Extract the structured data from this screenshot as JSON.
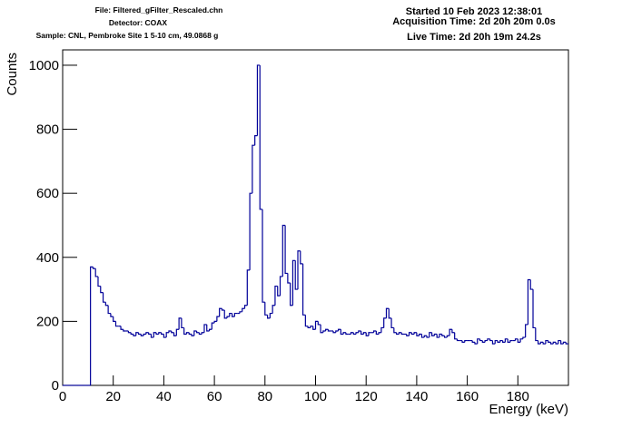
{
  "chart_data": {
    "type": "histogram",
    "annotations": [
      "File: Filtered_gFilter_Rescaled.chn",
      "Detector: COAX",
      "Sample: CNL, Pembroke Site 1 5-10 cm, 49.0868 g",
      "Started 10 Feb 2023 12:38:01",
      "Acquisition Time: 2d 20h 20m 0.0s",
      "Live Time: 2d 20h 19m 24.2s"
    ],
    "x_label": "Energy (keV)",
    "y_label": "Counts",
    "color": "#000099",
    "xlim": [
      0,
      200
    ],
    "ylim": [
      0,
      1048
    ],
    "xticks": [
      0,
      20,
      40,
      60,
      80,
      100,
      120,
      140,
      160,
      180
    ],
    "yticks": [
      0,
      200,
      400,
      600,
      800,
      1000
    ],
    "bins": [
      0,
      1,
      2,
      3,
      4,
      5,
      6,
      7,
      8,
      9,
      10,
      11,
      12,
      13,
      14,
      15,
      16,
      17,
      18,
      19,
      20,
      21,
      22,
      23,
      24,
      25,
      26,
      27,
      28,
      29,
      30,
      31,
      32,
      33,
      34,
      35,
      36,
      37,
      38,
      39,
      40,
      41,
      42,
      43,
      44,
      45,
      46,
      47,
      48,
      49,
      50,
      51,
      52,
      53,
      54,
      55,
      56,
      57,
      58,
      59,
      60,
      61,
      62,
      63,
      64,
      65,
      66,
      67,
      68,
      69,
      70,
      71,
      72,
      73,
      74,
      75,
      76,
      77,
      78,
      79,
      80,
      81,
      82,
      83,
      84,
      85,
      86,
      87,
      88,
      89,
      90,
      91,
      92,
      93,
      94,
      95,
      96,
      97,
      98,
      99,
      100,
      101,
      102,
      103,
      104,
      105,
      106,
      107,
      108,
      109,
      110,
      111,
      112,
      113,
      114,
      115,
      116,
      117,
      118,
      119,
      120,
      121,
      122,
      123,
      124,
      125,
      126,
      127,
      128,
      129,
      130,
      131,
      132,
      133,
      134,
      135,
      136,
      137,
      138,
      139,
      140,
      141,
      142,
      143,
      144,
      145,
      146,
      147,
      148,
      149,
      150,
      151,
      152,
      153,
      154,
      155,
      156,
      157,
      158,
      159,
      160,
      161,
      162,
      163,
      164,
      165,
      166,
      167,
      168,
      169,
      170,
      171,
      172,
      173,
      174,
      175,
      176,
      177,
      178,
      179,
      180,
      181,
      182,
      183,
      184,
      185,
      186,
      187,
      188,
      189,
      190,
      191,
      192,
      193,
      194,
      195,
      196,
      197,
      198,
      199,
      200
    ],
    "values": [
      0,
      0,
      0,
      0,
      0,
      0,
      0,
      0,
      0,
      0,
      0,
      370,
      365,
      340,
      310,
      290,
      260,
      250,
      225,
      215,
      200,
      185,
      185,
      175,
      170,
      170,
      165,
      160,
      155,
      165,
      160,
      155,
      160,
      165,
      160,
      150,
      165,
      160,
      165,
      160,
      150,
      165,
      170,
      165,
      155,
      175,
      210,
      180,
      160,
      165,
      160,
      155,
      170,
      165,
      160,
      165,
      190,
      170,
      175,
      195,
      200,
      215,
      240,
      235,
      210,
      215,
      225,
      215,
      225,
      225,
      230,
      240,
      250,
      360,
      600,
      750,
      780,
      1000,
      550,
      260,
      220,
      210,
      225,
      250,
      310,
      280,
      340,
      500,
      350,
      320,
      250,
      390,
      300,
      420,
      380,
      220,
      185,
      180,
      185,
      175,
      200,
      190,
      165,
      170,
      175,
      170,
      170,
      165,
      170,
      175,
      160,
      165,
      160,
      160,
      165,
      160,
      165,
      170,
      160,
      165,
      155,
      165,
      165,
      170,
      160,
      165,
      180,
      210,
      240,
      210,
      180,
      165,
      160,
      165,
      160,
      160,
      155,
      165,
      160,
      165,
      155,
      160,
      150,
      155,
      150,
      165,
      155,
      160,
      150,
      160,
      155,
      150,
      155,
      175,
      165,
      145,
      140,
      140,
      135,
      140,
      140,
      140,
      135,
      130,
      145,
      140,
      135,
      140,
      145,
      140,
      130,
      140,
      135,
      140,
      135,
      145,
      135,
      140,
      140,
      145,
      135,
      145,
      150,
      190,
      330,
      300,
      180,
      140,
      130,
      135,
      130,
      140,
      135,
      130,
      135,
      130,
      140,
      130,
      135,
      130
    ]
  }
}
